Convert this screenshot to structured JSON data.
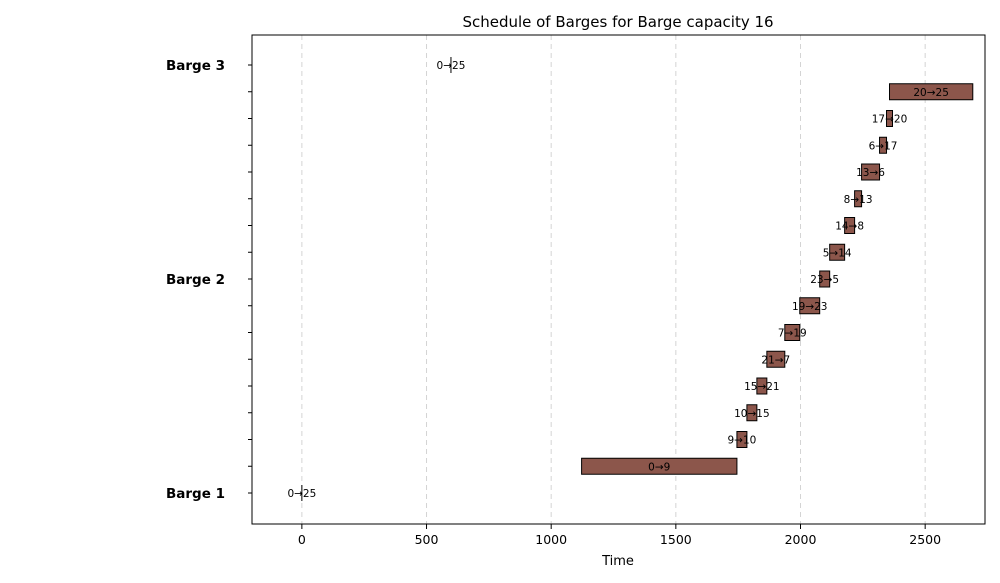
{
  "chart_data": {
    "type": "gantt",
    "title": "Schedule of Barges for Barge capacity 16",
    "xlabel": "Time",
    "ylabel": "",
    "xlim": [
      -200,
      2740
    ],
    "x_ticks": [
      0,
      500,
      1000,
      1500,
      2000,
      2500
    ],
    "grid": "x-dashed",
    "row_count": 17,
    "row_labels": [
      {
        "row": 0,
        "label": "Barge 1"
      },
      {
        "row": 8,
        "label": "Barge 2"
      },
      {
        "row": 16,
        "label": "Barge 3"
      }
    ],
    "color": "#8c564b",
    "tasks": [
      {
        "row": 0,
        "label": "0→25",
        "start": 0,
        "end": 0
      },
      {
        "row": 1,
        "label": "0→9",
        "start": 1122,
        "end": 1745
      },
      {
        "row": 2,
        "label": "9→10",
        "start": 1745,
        "end": 1785
      },
      {
        "row": 3,
        "label": "10→15",
        "start": 1785,
        "end": 1825
      },
      {
        "row": 4,
        "label": "15→21",
        "start": 1825,
        "end": 1865
      },
      {
        "row": 5,
        "label": "21→7",
        "start": 1865,
        "end": 1937
      },
      {
        "row": 6,
        "label": "7→19",
        "start": 1937,
        "end": 1997
      },
      {
        "row": 7,
        "label": "19→23",
        "start": 1997,
        "end": 2077
      },
      {
        "row": 8,
        "label": "23→5",
        "start": 2077,
        "end": 2117
      },
      {
        "row": 9,
        "label": "5→14",
        "start": 2117,
        "end": 2177
      },
      {
        "row": 10,
        "label": "14→8",
        "start": 2177,
        "end": 2217
      },
      {
        "row": 11,
        "label": "8→13",
        "start": 2217,
        "end": 2245
      },
      {
        "row": 12,
        "label": "13→6",
        "start": 2245,
        "end": 2317
      },
      {
        "row": 13,
        "label": "6→17",
        "start": 2317,
        "end": 2345
      },
      {
        "row": 14,
        "label": "17→20",
        "start": 2345,
        "end": 2369
      },
      {
        "row": 15,
        "label": "20→25",
        "start": 2357,
        "end": 2691
      },
      {
        "row": 16,
        "label": "0→25",
        "start": 598,
        "end": 598
      }
    ]
  }
}
